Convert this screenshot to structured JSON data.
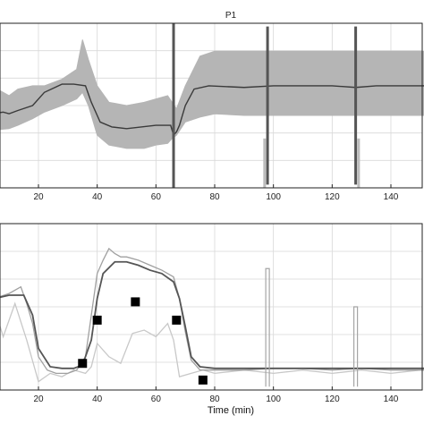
{
  "chart_data": [
    {
      "type": "line",
      "title": "P1",
      "xlabel": "",
      "ylabel": "",
      "xlim": [
        0,
        160
      ],
      "ylim": [
        0,
        1
      ],
      "x_ticks": [
        20,
        40,
        60,
        80,
        100,
        120,
        140
      ],
      "grid": true,
      "legend": "none",
      "band_color": "#b5b5b5",
      "line_color": "#3a3a3a",
      "spike_color": "#555555",
      "band": {
        "x": [
          0,
          4,
          10,
          13,
          18,
          22,
          28,
          33,
          35,
          37,
          40,
          44,
          50,
          56,
          60,
          64,
          65.5,
          67,
          70,
          75,
          80,
          90,
          97,
          98,
          104,
          115,
          125,
          130,
          135,
          145,
          160
        ],
        "upper": [
          0.64,
          0.62,
          0.56,
          0.6,
          0.62,
          0.62,
          0.66,
          0.72,
          0.9,
          0.78,
          0.62,
          0.52,
          0.5,
          0.52,
          0.54,
          0.56,
          0.52,
          0.48,
          0.62,
          0.8,
          0.83,
          0.83,
          0.83,
          0.83,
          0.83,
          0.83,
          0.83,
          0.83,
          0.83,
          0.83,
          0.83
        ],
        "lower": [
          0.35,
          0.35,
          0.36,
          0.38,
          0.42,
          0.46,
          0.5,
          0.54,
          0.58,
          0.5,
          0.32,
          0.26,
          0.24,
          0.24,
          0.26,
          0.27,
          0.3,
          0.32,
          0.4,
          0.43,
          0.45,
          0.44,
          0.44,
          0.44,
          0.44,
          0.44,
          0.44,
          0.44,
          0.44,
          0.44,
          0.44
        ]
      },
      "mean": {
        "x": [
          0,
          4,
          8,
          10,
          13,
          18,
          22,
          28,
          32,
          36,
          38,
          41,
          45,
          50,
          55,
          60,
          63,
          65,
          66,
          67,
          68,
          70,
          73,
          78,
          90,
          100,
          110,
          120,
          128,
          135,
          140,
          150,
          160
        ],
        "y": [
          0.46,
          0.45,
          0.46,
          0.45,
          0.47,
          0.5,
          0.58,
          0.63,
          0.63,
          0.62,
          0.52,
          0.4,
          0.37,
          0.36,
          0.37,
          0.38,
          0.38,
          0.38,
          0.32,
          0.34,
          0.38,
          0.5,
          0.6,
          0.62,
          0.61,
          0.62,
          0.62,
          0.62,
          0.61,
          0.62,
          0.62,
          0.62,
          0.62
        ]
      },
      "vertical_spikes": [
        {
          "x": 6,
          "from": 0.0,
          "to": 1.0
        },
        {
          "x": 66,
          "from": 0.0,
          "to": 1.0
        },
        {
          "x": 98,
          "from": 0.02,
          "to": 0.98
        },
        {
          "x": 128,
          "from": 0.02,
          "to": 0.98
        }
      ],
      "light_spikes": [
        {
          "x": 97,
          "from": 0.0,
          "to": 0.3
        },
        {
          "x": 129,
          "from": 0.0,
          "to": 0.3
        }
      ]
    },
    {
      "type": "line",
      "title": "",
      "xlabel": "Time (min)",
      "ylabel": "",
      "xlim": [
        0,
        160
      ],
      "ylim": [
        0,
        1
      ],
      "x_ticks": [
        20,
        40,
        60,
        80,
        100,
        120,
        140
      ],
      "grid": true,
      "legend": "none",
      "series": [
        {
          "color": "#c8c8c8",
          "x": [
            0,
            4,
            8,
            12,
            16,
            20,
            24,
            28,
            32,
            36,
            38,
            40,
            44,
            48,
            52,
            56,
            60,
            64,
            66,
            68,
            72,
            76,
            80,
            90,
            100,
            110,
            120,
            130,
            140,
            150,
            160
          ],
          "y": [
            0.3,
            0.55,
            0.32,
            0.52,
            0.3,
            0.05,
            0.1,
            0.08,
            0.12,
            0.1,
            0.14,
            0.28,
            0.2,
            0.16,
            0.34,
            0.36,
            0.32,
            0.4,
            0.3,
            0.08,
            0.1,
            0.12,
            0.1,
            0.12,
            0.1,
            0.12,
            0.1,
            0.12,
            0.1,
            0.12,
            0.12
          ]
        },
        {
          "color": "#a0a0a0",
          "x": [
            0,
            5,
            10,
            14,
            16,
            18,
            20,
            23,
            26,
            30,
            33,
            36,
            38,
            40,
            42,
            44,
            46,
            48,
            50,
            54,
            58,
            62,
            66,
            68,
            70,
            72,
            75,
            80,
            90,
            100,
            110,
            120,
            130,
            140,
            150,
            160
          ],
          "y": [
            0.52,
            0.55,
            0.58,
            0.62,
            0.52,
            0.4,
            0.2,
            0.12,
            0.1,
            0.1,
            0.12,
            0.2,
            0.45,
            0.7,
            0.78,
            0.85,
            0.82,
            0.8,
            0.8,
            0.78,
            0.75,
            0.72,
            0.68,
            0.55,
            0.35,
            0.18,
            0.12,
            0.12,
            0.12,
            0.13,
            0.13,
            0.12,
            0.13,
            0.12,
            0.12,
            0.12
          ]
        },
        {
          "color": "#555555",
          "x": [
            0,
            5,
            10,
            15,
            18,
            20,
            24,
            28,
            32,
            35,
            38,
            40,
            42,
            46,
            50,
            54,
            58,
            62,
            66,
            68,
            70,
            72,
            75,
            80,
            90,
            100,
            110,
            120,
            130,
            140,
            150,
            160
          ],
          "y": [
            0.53,
            0.55,
            0.57,
            0.57,
            0.45,
            0.25,
            0.14,
            0.13,
            0.13,
            0.15,
            0.3,
            0.55,
            0.7,
            0.77,
            0.77,
            0.75,
            0.72,
            0.7,
            0.65,
            0.55,
            0.38,
            0.2,
            0.14,
            0.13,
            0.13,
            0.13,
            0.13,
            0.13,
            0.13,
            0.13,
            0.13,
            0.13
          ]
        }
      ],
      "markers": {
        "color": "#000000",
        "x": [
          35,
          40,
          53,
          67,
          76
        ],
        "y": [
          0.16,
          0.42,
          0.53,
          0.42,
          0.06
        ]
      },
      "vertical_spikes": [
        {
          "x": 98,
          "from": 0.02,
          "to": 0.73
        },
        {
          "x": 128,
          "from": 0.02,
          "to": 0.5
        }
      ]
    }
  ]
}
